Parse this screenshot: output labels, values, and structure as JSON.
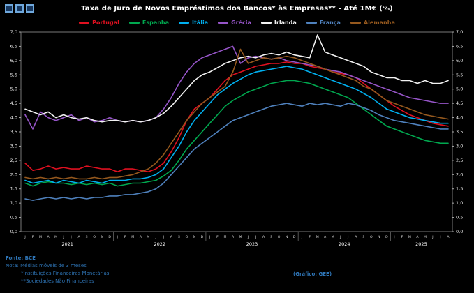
{
  "header": {
    "title": "Taxa de Juro de Novos Empréstimos dos Bancos* às Empresas** - Até 1M€ (%)"
  },
  "footer": {
    "source": "Fonte: BCE",
    "note": "Nota: Médias móveis de 3 meses",
    "footnote1": "*Instituições Financeiras Monetárias",
    "footnote2": "**Sociedades Não Financeiras",
    "credit": "(Gráfico: GEE)"
  },
  "chart_data": {
    "type": "line",
    "title": "Taxa de Juro de Novos Empréstimos dos Bancos* às Empresas** - Até 1M€ (%)",
    "ylim": [
      0,
      7
    ],
    "ytick_step": 0.5,
    "grid": false,
    "legend_position": "top",
    "month_letters": [
      "J",
      "F",
      "M",
      "A",
      "M",
      "J",
      "J",
      "A",
      "S",
      "O",
      "N",
      "D"
    ],
    "years": [
      {
        "label": "2021",
        "months": 12
      },
      {
        "label": "2022",
        "months": 12
      },
      {
        "label": "2023",
        "months": 12
      },
      {
        "label": "2024",
        "months": 12
      },
      {
        "label": "2025",
        "months": 8
      }
    ],
    "series": [
      {
        "name": "Portugal",
        "color": "#e01020",
        "values": [
          2.4,
          2.15,
          2.2,
          2.3,
          2.2,
          2.25,
          2.2,
          2.2,
          2.3,
          2.25,
          2.2,
          2.2,
          2.1,
          2.2,
          2.2,
          2.15,
          2.1,
          2.2,
          2.4,
          2.8,
          3.3,
          3.9,
          4.3,
          4.5,
          4.7,
          5.0,
          5.3,
          5.5,
          5.6,
          5.7,
          5.8,
          5.85,
          5.9,
          5.9,
          5.95,
          5.9,
          5.9,
          5.8,
          5.75,
          5.7,
          5.6,
          5.55,
          5.5,
          5.4,
          5.2,
          5.0,
          4.8,
          4.6,
          4.4,
          4.25,
          4.1,
          4.0,
          3.9,
          3.8,
          3.75,
          3.7
        ]
      },
      {
        "name": "Espanha",
        "color": "#00a84f",
        "values": [
          1.7,
          1.6,
          1.7,
          1.75,
          1.7,
          1.7,
          1.65,
          1.7,
          1.65,
          1.7,
          1.65,
          1.7,
          1.6,
          1.65,
          1.7,
          1.7,
          1.75,
          1.8,
          1.95,
          2.15,
          2.5,
          2.9,
          3.2,
          3.5,
          3.8,
          4.1,
          4.4,
          4.6,
          4.75,
          4.9,
          5.0,
          5.1,
          5.2,
          5.25,
          5.3,
          5.3,
          5.25,
          5.2,
          5.1,
          5.0,
          4.9,
          4.8,
          4.7,
          4.5,
          4.3,
          4.1,
          3.9,
          3.7,
          3.6,
          3.5,
          3.4,
          3.3,
          3.2,
          3.15,
          3.1,
          3.1
        ]
      },
      {
        "name": "Itália",
        "color": "#00b0f0",
        "values": [
          1.8,
          1.7,
          1.75,
          1.8,
          1.7,
          1.8,
          1.75,
          1.7,
          1.8,
          1.75,
          1.7,
          1.8,
          1.8,
          1.8,
          1.85,
          1.85,
          1.9,
          2.0,
          2.2,
          2.6,
          3.0,
          3.5,
          3.9,
          4.2,
          4.5,
          4.8,
          5.0,
          5.2,
          5.35,
          5.5,
          5.6,
          5.65,
          5.7,
          5.75,
          5.8,
          5.75,
          5.7,
          5.6,
          5.5,
          5.4,
          5.3,
          5.2,
          5.1,
          5.0,
          4.85,
          4.7,
          4.5,
          4.3,
          4.2,
          4.1,
          4.0,
          3.95,
          3.9,
          3.85,
          3.8,
          3.8
        ]
      },
      {
        "name": "Grécia",
        "color": "#9655c8",
        "values": [
          4.1,
          3.6,
          4.2,
          4.0,
          3.9,
          4.0,
          4.1,
          3.9,
          4.0,
          3.85,
          3.9,
          4.0,
          3.9,
          3.85,
          3.9,
          3.85,
          3.9,
          4.0,
          4.3,
          4.7,
          5.2,
          5.6,
          5.9,
          6.1,
          6.2,
          6.3,
          6.4,
          6.5,
          5.9,
          6.1,
          6.15,
          6.1,
          6.05,
          6.1,
          6.0,
          5.95,
          5.9,
          5.85,
          5.8,
          5.7,
          5.65,
          5.6,
          5.5,
          5.4,
          5.3,
          5.2,
          5.1,
          5.0,
          4.9,
          4.8,
          4.7,
          4.65,
          4.6,
          4.55,
          4.5,
          4.5
        ]
      },
      {
        "name": "Irlanda",
        "color": "#f2f2f2",
        "values": [
          4.3,
          4.2,
          4.1,
          4.2,
          4.0,
          4.1,
          4.0,
          3.95,
          4.0,
          3.9,
          3.85,
          3.9,
          3.9,
          3.85,
          3.9,
          3.85,
          3.9,
          4.0,
          4.15,
          4.4,
          4.7,
          5.0,
          5.3,
          5.5,
          5.6,
          5.75,
          5.9,
          6.0,
          6.1,
          6.15,
          6.1,
          6.2,
          6.25,
          6.2,
          6.3,
          6.2,
          6.15,
          6.1,
          6.9,
          6.3,
          6.2,
          6.1,
          6.0,
          5.9,
          5.8,
          5.6,
          5.5,
          5.4,
          5.4,
          5.3,
          5.3,
          5.2,
          5.3,
          5.2,
          5.2,
          5.3
        ]
      },
      {
        "name": "França",
        "color": "#4f81bd",
        "values": [
          1.15,
          1.1,
          1.15,
          1.2,
          1.15,
          1.2,
          1.15,
          1.2,
          1.15,
          1.2,
          1.2,
          1.25,
          1.25,
          1.3,
          1.3,
          1.35,
          1.4,
          1.5,
          1.7,
          2.0,
          2.3,
          2.6,
          2.9,
          3.1,
          3.3,
          3.5,
          3.7,
          3.9,
          4.0,
          4.1,
          4.2,
          4.3,
          4.4,
          4.45,
          4.5,
          4.45,
          4.4,
          4.5,
          4.45,
          4.5,
          4.45,
          4.4,
          4.5,
          4.45,
          4.35,
          4.25,
          4.1,
          4.0,
          3.9,
          3.85,
          3.8,
          3.75,
          3.7,
          3.65,
          3.6,
          3.6
        ]
      },
      {
        "name": "Alemanha",
        "color": "#96591e",
        "values": [
          1.9,
          1.85,
          1.9,
          1.85,
          1.9,
          1.85,
          1.9,
          1.85,
          1.85,
          1.9,
          1.85,
          1.9,
          1.9,
          1.95,
          2.0,
          2.1,
          2.2,
          2.4,
          2.7,
          3.1,
          3.5,
          3.9,
          4.2,
          4.5,
          4.7,
          4.9,
          5.1,
          5.6,
          6.4,
          5.9,
          6.0,
          6.1,
          6.05,
          6.1,
          6.15,
          6.1,
          6.0,
          5.9,
          5.8,
          5.7,
          5.6,
          5.5,
          5.4,
          5.3,
          5.1,
          5.0,
          4.8,
          4.6,
          4.5,
          4.4,
          4.3,
          4.2,
          4.1,
          4.05,
          4.0,
          3.95
        ]
      }
    ]
  }
}
